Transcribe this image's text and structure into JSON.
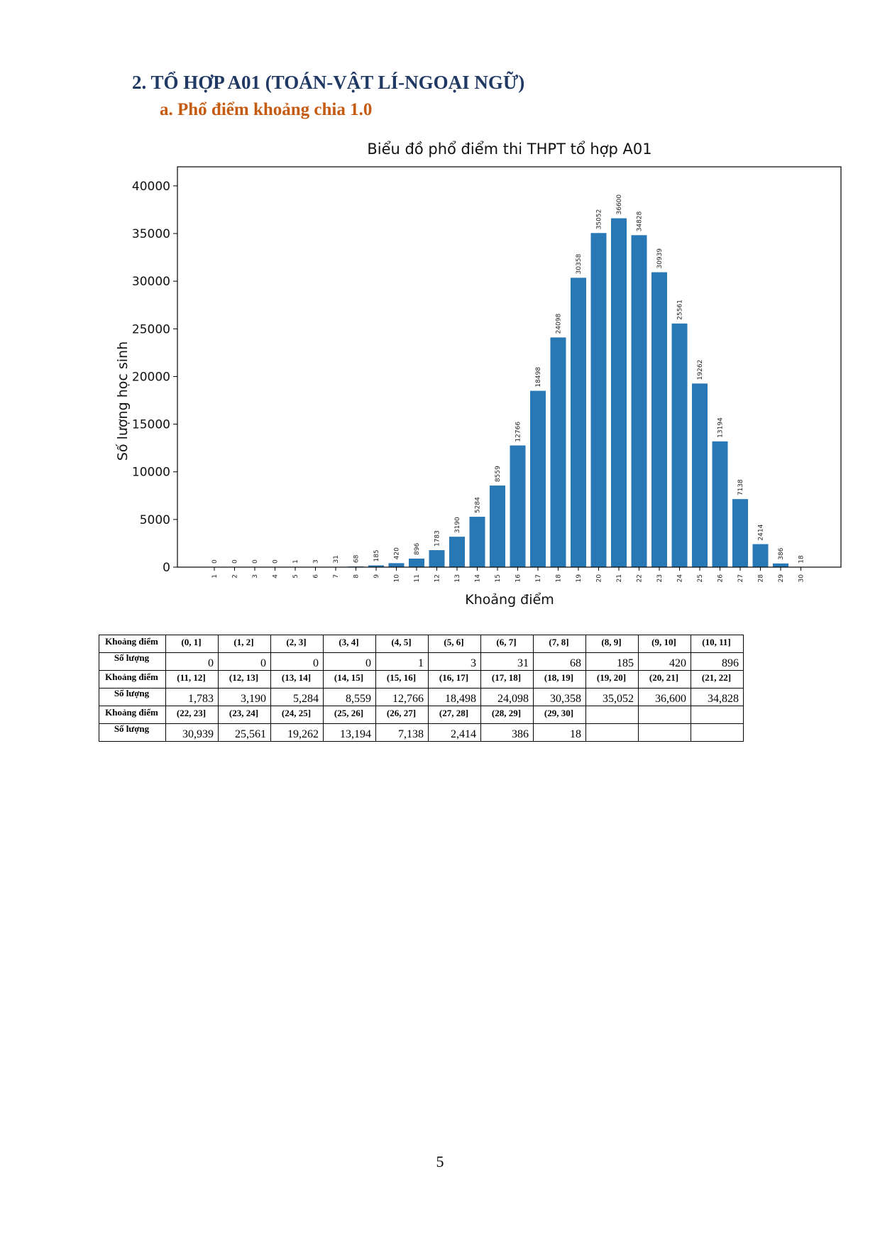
{
  "heading": "2.  TỔ HỢP A01 (TOÁN-VẬT LÍ-NGOẠI NGỮ)",
  "subheading": "a.  Phổ điểm khoảng chia 1.0",
  "chart_data": {
    "type": "bar",
    "title": "Biểu đồ phổ điểm thi THPT tổ hợp A01",
    "xlabel": "Khoảng điểm",
    "ylabel": "Số lượng học sinh",
    "categories": [
      "1",
      "2",
      "3",
      "4",
      "5",
      "6",
      "7",
      "8",
      "9",
      "10",
      "11",
      "12",
      "13",
      "14",
      "15",
      "16",
      "17",
      "18",
      "19",
      "20",
      "21",
      "22",
      "23",
      "24",
      "25",
      "26",
      "27",
      "28",
      "29",
      "30"
    ],
    "values": [
      0,
      0,
      0,
      0,
      1,
      3,
      31,
      68,
      185,
      420,
      896,
      1783,
      3190,
      5284,
      8559,
      12766,
      18498,
      24098,
      30358,
      35052,
      36600,
      34828,
      30939,
      25561,
      19262,
      13194,
      7138,
      2414,
      386,
      18
    ],
    "ylim": [
      0,
      42000
    ],
    "yticks": [
      0,
      5000,
      10000,
      15000,
      20000,
      25000,
      30000,
      35000,
      40000
    ],
    "bar_color": "#2878b5",
    "grid": false
  },
  "table": {
    "range_label": "Khoảng điểm",
    "count_label": "Số lượng",
    "rows": [
      {
        "ranges": [
          "(0, 1]",
          "(1, 2]",
          "(2, 3]",
          "(3, 4]",
          "(4, 5]",
          "(5, 6]",
          "(6, 7]",
          "(7, 8]",
          "(8, 9]",
          "(9, 10]",
          "(10, 11]"
        ],
        "counts": [
          "0",
          "0",
          "0",
          "0",
          "1",
          "3",
          "31",
          "68",
          "185",
          "420",
          "896"
        ]
      },
      {
        "ranges": [
          "(11, 12]",
          "(12, 13]",
          "(13, 14]",
          "(14, 15]",
          "(15, 16]",
          "(16, 17]",
          "(17, 18]",
          "(18, 19]",
          "(19, 20]",
          "(20, 21]",
          "(21, 22]"
        ],
        "counts": [
          "1,783",
          "3,190",
          "5,284",
          "8,559",
          "12,766",
          "18,498",
          "24,098",
          "30,358",
          "35,052",
          "36,600",
          "34,828"
        ]
      },
      {
        "ranges": [
          "(22, 23]",
          "(23, 24]",
          "(24, 25]",
          "(25, 26]",
          "(26, 27]",
          "(27, 28]",
          "(28, 29]",
          "(29, 30]",
          "",
          "",
          ""
        ],
        "counts": [
          "30,939",
          "25,561",
          "19,262",
          "13,194",
          "7,138",
          "2,414",
          "386",
          "18",
          "",
          "",
          ""
        ]
      }
    ]
  },
  "page_number": "5"
}
